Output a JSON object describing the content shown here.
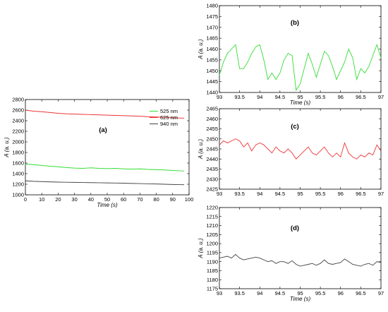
{
  "chart_data": [
    {
      "id": "a",
      "type": "line",
      "panel_label": "(a)",
      "xlabel": "Time (s)",
      "ylabel": "A (a. u.)",
      "xlim": [
        0,
        100
      ],
      "ylim": [
        1000,
        2800
      ],
      "xticks": [
        0,
        10,
        20,
        30,
        40,
        50,
        60,
        70,
        80,
        90,
        100
      ],
      "yticks": [
        1000,
        1200,
        1400,
        1600,
        1800,
        2000,
        2200,
        2400,
        2600,
        2800
      ],
      "grid": false,
      "legend": "top-right",
      "series": [
        {
          "name": "525 nm",
          "color": "#33dd33",
          "x": [
            0,
            5,
            10,
            15,
            20,
            25,
            30,
            35,
            40,
            45,
            50,
            55,
            60,
            65,
            70,
            75,
            80,
            85,
            90,
            95,
            97
          ],
          "y": [
            1580,
            1570,
            1555,
            1540,
            1530,
            1515,
            1505,
            1500,
            1510,
            1500,
            1495,
            1500,
            1490,
            1485,
            1490,
            1480,
            1475,
            1470,
            1460,
            1452,
            1450
          ]
        },
        {
          "name": "625 nm",
          "color": "#ee3333",
          "x": [
            0,
            5,
            10,
            15,
            20,
            25,
            30,
            35,
            40,
            45,
            50,
            55,
            60,
            65,
            70,
            75,
            80,
            85,
            90,
            95,
            97
          ],
          "y": [
            2600,
            2580,
            2570,
            2555,
            2540,
            2530,
            2525,
            2520,
            2515,
            2510,
            2505,
            2500,
            2495,
            2490,
            2485,
            2475,
            2470,
            2465,
            2455,
            2450,
            2448
          ]
        },
        {
          "name": "940 nm",
          "color": "#444444",
          "x": [
            0,
            5,
            10,
            15,
            20,
            25,
            30,
            35,
            40,
            45,
            50,
            55,
            60,
            65,
            70,
            75,
            80,
            85,
            90,
            95,
            97
          ],
          "y": [
            1265,
            1255,
            1250,
            1245,
            1240,
            1238,
            1235,
            1232,
            1230,
            1228,
            1225,
            1222,
            1220,
            1215,
            1212,
            1208,
            1205,
            1200,
            1195,
            1192,
            1190
          ]
        }
      ]
    },
    {
      "id": "b",
      "type": "line",
      "panel_label": "(b)",
      "xlabel": "Time (s)",
      "ylabel": "A (a. u.)",
      "xlim": [
        93,
        97
      ],
      "ylim": [
        1440,
        1480
      ],
      "xticks": [
        "93",
        "93.5",
        "94",
        "94.5",
        "95",
        "95.5",
        "96",
        "96.5",
        "97"
      ],
      "yticks": [
        1440,
        1445,
        1450,
        1455,
        1460,
        1465,
        1470,
        1475,
        1480
      ],
      "grid": false,
      "series": [
        {
          "color": "#33dd33",
          "x": [
            93,
            93.1,
            93.2,
            93.3,
            93.4,
            93.5,
            93.6,
            93.7,
            93.8,
            93.9,
            94,
            94.1,
            94.2,
            94.3,
            94.4,
            94.5,
            94.6,
            94.7,
            94.8,
            94.9,
            95,
            95.1,
            95.2,
            95.3,
            95.4,
            95.5,
            95.6,
            95.7,
            95.8,
            95.9,
            96,
            96.1,
            96.2,
            96.3,
            96.4,
            96.5,
            96.6,
            96.7,
            96.8,
            96.9,
            97
          ],
          "y": [
            1448,
            1454,
            1458,
            1460,
            1462,
            1451,
            1451,
            1454,
            1458,
            1461,
            1462,
            1455,
            1446,
            1449,
            1446,
            1449,
            1455,
            1458,
            1457,
            1441,
            1444,
            1451,
            1458,
            1453,
            1447,
            1453,
            1459,
            1457,
            1452,
            1446,
            1450,
            1454,
            1460,
            1456,
            1446,
            1451,
            1449,
            1452,
            1457,
            1462,
            1456
          ]
        }
      ]
    },
    {
      "id": "c",
      "type": "line",
      "panel_label": "(c)",
      "xlabel": "",
      "ylabel": "A (a. u.)",
      "xlim": [
        93,
        97
      ],
      "ylim": [
        2425,
        2465
      ],
      "xticks": [
        "93",
        "93.5",
        "94",
        "94.5",
        "95",
        "95.5",
        "96",
        "96.5",
        "97"
      ],
      "yticks": [
        2425,
        2430,
        2435,
        2440,
        2445,
        2450,
        2455,
        2460,
        2465
      ],
      "grid": false,
      "series": [
        {
          "color": "#ee3333",
          "x": [
            93,
            93.1,
            93.2,
            93.3,
            93.4,
            93.5,
            93.6,
            93.7,
            93.8,
            93.9,
            94,
            94.1,
            94.2,
            94.3,
            94.4,
            94.5,
            94.6,
            94.7,
            94.8,
            94.9,
            95,
            95.1,
            95.2,
            95.3,
            95.4,
            95.5,
            95.6,
            95.7,
            95.8,
            95.9,
            96,
            96.1,
            96.2,
            96.3,
            96.4,
            96.5,
            96.6,
            96.7,
            96.8,
            96.9,
            97
          ],
          "y": [
            2447,
            2449,
            2448,
            2449,
            2450,
            2449,
            2446,
            2448,
            2444,
            2447,
            2448,
            2447,
            2445,
            2443,
            2446,
            2444,
            2443,
            2445,
            2443,
            2440,
            2442,
            2444,
            2446,
            2443,
            2442,
            2444,
            2446,
            2443,
            2441,
            2443,
            2441,
            2448,
            2443,
            2441,
            2440,
            2442,
            2441,
            2443,
            2442,
            2447,
            2444
          ]
        }
      ]
    },
    {
      "id": "d",
      "type": "line",
      "panel_label": "(d)",
      "xlabel": "Time (s)",
      "ylabel": "A (a. u.)",
      "xlim": [
        93,
        97
      ],
      "ylim": [
        1175,
        1220
      ],
      "xticks": [
        "93",
        "93.5",
        "94",
        "94.5",
        "95",
        "95.5",
        "96",
        "96.5",
        "97"
      ],
      "yticks": [
        1175,
        1180,
        1185,
        1190,
        1195,
        1200,
        1205,
        1210,
        1215,
        1220
      ],
      "grid": false,
      "series": [
        {
          "color": "#444444",
          "x": [
            93,
            93.1,
            93.2,
            93.3,
            93.4,
            93.5,
            93.6,
            93.7,
            93.8,
            93.9,
            94,
            94.1,
            94.2,
            94.3,
            94.4,
            94.5,
            94.6,
            94.7,
            94.8,
            94.9,
            95,
            95.1,
            95.2,
            95.3,
            95.4,
            95.5,
            95.6,
            95.7,
            95.8,
            95.9,
            96,
            96.1,
            96.2,
            96.3,
            96.4,
            96.5,
            96.6,
            96.7,
            96.8,
            96.9,
            97
          ],
          "y": [
            1192,
            1192.5,
            1193,
            1192,
            1194,
            1192,
            1191,
            1191.5,
            1192,
            1192.5,
            1192,
            1191,
            1190,
            1190.5,
            1189,
            1190,
            1190,
            1189,
            1190.5,
            1188.5,
            1187.5,
            1188,
            1188.5,
            1189,
            1188,
            1189,
            1191,
            1189,
            1188.5,
            1189,
            1189.5,
            1191.5,
            1190,
            1188.5,
            1188,
            1187.5,
            1188.5,
            1189,
            1188,
            1190,
            1189.5
          ]
        }
      ]
    }
  ]
}
